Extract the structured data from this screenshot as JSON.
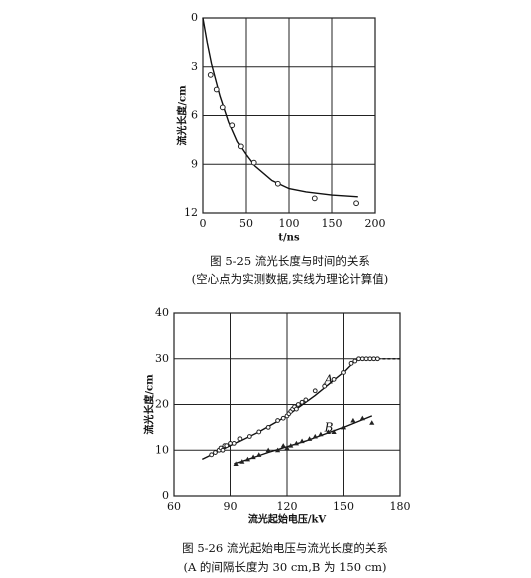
{
  "chart_data": [
    {
      "type": "scatter",
      "y_inverted": true,
      "grid": true,
      "y_label": "流光长度/cm",
      "x_label": "t/ns",
      "caption": "图 5-25   流光长度与时间的关系",
      "note": "(空心点为实测数据,实线为理论计算值)",
      "xlim": [
        0,
        200
      ],
      "xticks": [
        0,
        50,
        100,
        150,
        200
      ],
      "ylim": [
        0,
        12
      ],
      "yticks": [
        0,
        3,
        6,
        9,
        12
      ],
      "series": [
        {
          "marker": "circle",
          "color": "#222",
          "x": [
            9,
            16,
            23,
            34,
            44,
            59,
            87,
            130,
            178
          ],
          "values": [
            3.5,
            4.4,
            5.5,
            6.6,
            7.9,
            8.9,
            10.2,
            11.1,
            11.4
          ],
          "fit_x": [
            0,
            5,
            10,
            20,
            30,
            40,
            50,
            60,
            80,
            100,
            120,
            150,
            180
          ],
          "fit_values": [
            0,
            1.5,
            2.8,
            4.8,
            6.4,
            7.6,
            8.4,
            9.1,
            10.0,
            10.5,
            10.7,
            10.9,
            11.0
          ]
        }
      ]
    },
    {
      "type": "scatter",
      "grid": true,
      "y_label": "流光长度/cm",
      "x_label": "流光起始电压/kV",
      "caption": "图 5-26   流光起始电压与流光长度的关系",
      "note": "(A 的间隔长度为 30 cm,B 为 150 cm)",
      "xlim": [
        60,
        180
      ],
      "xticks": [
        60,
        90,
        120,
        150,
        180
      ],
      "ylim": [
        0,
        40
      ],
      "yticks": [
        0,
        10,
        20,
        30,
        40
      ],
      "series": [
        {
          "name": "A",
          "marker": "circle",
          "color": "#222",
          "x": [
            80,
            82,
            84,
            85,
            86,
            87,
            88,
            90,
            92,
            95,
            100,
            105,
            110,
            115,
            118,
            120,
            121,
            122,
            123,
            124,
            125,
            126,
            128,
            130,
            135,
            140,
            145,
            150,
            154,
            156,
            158,
            160,
            162,
            164,
            166,
            168
          ],
          "values": [
            9,
            9.5,
            10,
            10.5,
            10,
            11,
            11,
            11.5,
            11.5,
            12.5,
            13,
            14,
            15,
            16.5,
            17,
            17.5,
            18,
            18.5,
            19,
            19.5,
            19,
            20,
            20.5,
            21,
            23,
            24,
            25.5,
            27,
            29,
            29.5,
            30,
            30,
            30,
            30,
            30,
            30
          ],
          "fit_x": [
            75,
            90,
            105,
            120,
            135,
            150,
            157,
            168
          ],
          "fit_values": [
            8,
            11,
            14,
            17.5,
            22,
            27,
            30,
            30
          ],
          "extension_x": [
            168,
            180
          ],
          "extension_values": [
            30,
            30
          ]
        },
        {
          "name": "B",
          "marker": "triangle",
          "color": "#222",
          "x": [
            93,
            96,
            99,
            102,
            105,
            110,
            115,
            118,
            120,
            122,
            125,
            128,
            132,
            135,
            138,
            142,
            145,
            150,
            155,
            160,
            165
          ],
          "values": [
            7,
            7.5,
            8,
            8.5,
            9,
            10,
            10,
            11,
            10.5,
            11,
            11.5,
            12,
            12.5,
            13,
            13.5,
            14,
            14,
            15,
            16.5,
            17,
            16
          ],
          "fit_x": [
            92,
            110,
            130,
            150,
            165
          ],
          "fit_values": [
            7,
            9.5,
            12,
            15,
            17.5
          ]
        }
      ]
    }
  ]
}
